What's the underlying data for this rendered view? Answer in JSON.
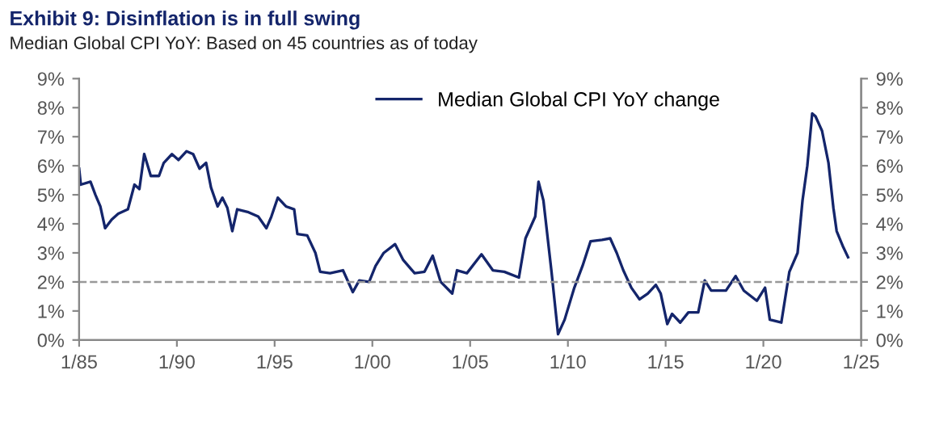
{
  "chart_data": {
    "type": "line",
    "title": "Exhibit 9: Disinflation is in full swing",
    "subtitle": "Median Global CPI YoY: Based on 45 countries as of today",
    "series": [
      {
        "name": "Median Global CPI YoY change",
        "color": "#14256b",
        "x": [
          "1985-01",
          "1985-02",
          "1985-08",
          "1985-11",
          "1986-02",
          "1986-05",
          "1986-09",
          "1987-01",
          "1987-07",
          "1987-11",
          "1988-02",
          "1988-05",
          "1988-09",
          "1989-02",
          "1989-05",
          "1989-10",
          "1990-02",
          "1990-07",
          "1990-11",
          "1991-03",
          "1991-07",
          "1991-10",
          "1992-02",
          "1992-05",
          "1992-08",
          "1992-11",
          "1993-02",
          "1993-09",
          "1994-03",
          "1994-08",
          "1994-11",
          "1995-03",
          "1995-08",
          "1996-01",
          "1996-03",
          "1996-09",
          "1997-02",
          "1997-05",
          "1997-11",
          "1998-07",
          "1999-01",
          "1999-05",
          "1999-11",
          "2000-03",
          "2000-08",
          "2001-03",
          "2001-08",
          "2002-03",
          "2002-09",
          "2003-02",
          "2003-07",
          "2004-02",
          "2004-05",
          "2004-11",
          "2005-08",
          "2006-03",
          "2006-10",
          "2007-07",
          "2007-11",
          "2008-05",
          "2008-07",
          "2008-10",
          "2009-03",
          "2009-07",
          "2009-11",
          "2010-05",
          "2010-10",
          "2011-03",
          "2011-10",
          "2012-03",
          "2012-07",
          "2012-11",
          "2013-04",
          "2013-09",
          "2014-02",
          "2014-07",
          "2014-10",
          "2015-02",
          "2015-05",
          "2015-10",
          "2016-03",
          "2016-09",
          "2017-01",
          "2017-05",
          "2018-02",
          "2018-08",
          "2019-01",
          "2019-09",
          "2020-02",
          "2020-05",
          "2020-12",
          "2021-05",
          "2021-10",
          "2022-01",
          "2022-04",
          "2022-07",
          "2022-09",
          "2023-01",
          "2023-05",
          "2023-08",
          "2023-10",
          "2024-02",
          "2024-05"
        ],
        "values": [
          5.9,
          5.35,
          5.45,
          5.0,
          4.6,
          3.85,
          4.15,
          4.35,
          4.5,
          5.35,
          5.2,
          6.4,
          5.65,
          5.65,
          6.1,
          6.4,
          6.2,
          6.5,
          6.4,
          5.9,
          6.1,
          5.25,
          4.6,
          4.9,
          4.55,
          3.75,
          4.5,
          4.4,
          4.25,
          3.85,
          4.25,
          4.9,
          4.6,
          4.5,
          3.65,
          3.6,
          3.0,
          2.35,
          2.3,
          2.4,
          1.65,
          2.05,
          2.0,
          2.55,
          3.0,
          3.3,
          2.75,
          2.3,
          2.35,
          2.9,
          2.0,
          1.6,
          2.4,
          2.3,
          2.95,
          2.4,
          2.35,
          2.15,
          3.5,
          4.25,
          5.45,
          4.8,
          2.35,
          0.2,
          0.7,
          1.8,
          2.55,
          3.4,
          3.45,
          3.5,
          3.0,
          2.4,
          1.8,
          1.4,
          1.6,
          1.9,
          1.6,
          0.55,
          0.9,
          0.6,
          0.95,
          0.95,
          2.05,
          1.7,
          1.7,
          2.2,
          1.7,
          1.35,
          1.8,
          0.7,
          0.6,
          2.35,
          3.0,
          4.8,
          6.0,
          7.8,
          7.7,
          7.2,
          6.1,
          4.55,
          3.75,
          3.2,
          2.85
        ]
      }
    ],
    "xlim": [
      "1985-01-01",
      "2025-01-01"
    ],
    "xticks": [
      {
        "value": "1985-01-01",
        "label": "1/85"
      },
      {
        "value": "1990-01-01",
        "label": "1/90"
      },
      {
        "value": "1995-01-01",
        "label": "1/95"
      },
      {
        "value": "2000-01-01",
        "label": "1/00"
      },
      {
        "value": "2005-01-01",
        "label": "1/05"
      },
      {
        "value": "2010-01-01",
        "label": "1/10"
      },
      {
        "value": "2015-01-01",
        "label": "1/15"
      },
      {
        "value": "2020-01-01",
        "label": "1/20"
      },
      {
        "value": "2025-01-01",
        "label": "1/25"
      }
    ],
    "ylim": [
      0,
      9
    ],
    "yticks": [
      {
        "value": 0,
        "label": "0%"
      },
      {
        "value": 1,
        "label": "1%"
      },
      {
        "value": 2,
        "label": "2%"
      },
      {
        "value": 3,
        "label": "3%"
      },
      {
        "value": 4,
        "label": "4%"
      },
      {
        "value": 5,
        "label": "5%"
      },
      {
        "value": 6,
        "label": "6%"
      },
      {
        "value": 7,
        "label": "7%"
      },
      {
        "value": 8,
        "label": "8%"
      },
      {
        "value": 9,
        "label": "9%"
      }
    ],
    "y2lim": [
      0,
      9
    ],
    "y2ticks": [
      {
        "value": 0,
        "label": "0%"
      },
      {
        "value": 1,
        "label": "1%"
      },
      {
        "value": 2,
        "label": "2%"
      },
      {
        "value": 3,
        "label": "3%"
      },
      {
        "value": 4,
        "label": "4%"
      },
      {
        "value": 5,
        "label": "5%"
      },
      {
        "value": 6,
        "label": "6%"
      },
      {
        "value": 7,
        "label": "7%"
      },
      {
        "value": 8,
        "label": "8%"
      },
      {
        "value": 9,
        "label": "9%"
      }
    ],
    "ref_lines": [
      {
        "axis": "y",
        "value": 2,
        "label": null,
        "color": "#999999",
        "line_style": "dashed"
      }
    ],
    "grid": false,
    "legend": "top",
    "marker": "none",
    "line_style": "solid"
  }
}
